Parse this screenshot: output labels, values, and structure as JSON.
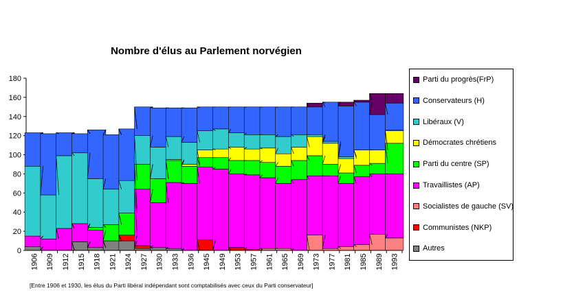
{
  "chart_data": {
    "type": "bar",
    "stacked": true,
    "title": "Nombre d'élus au Parlement norvégien",
    "xlabel": "",
    "ylabel": "",
    "ylim": [
      0,
      180
    ],
    "yticks": [
      0,
      20,
      40,
      60,
      80,
      100,
      120,
      140,
      160,
      180
    ],
    "grid": false,
    "connector_lines": true,
    "legend_position": "right",
    "categories": [
      "1906",
      "1909",
      "1912",
      "1915",
      "1918",
      "1921",
      "1924",
      "1927",
      "1930",
      "1933",
      "1936",
      "1945",
      "1949",
      "1953",
      "1957",
      "1961",
      "1965",
      "1969",
      "1973",
      "1977",
      "1981",
      "1985",
      "1989",
      "1993"
    ],
    "series": [
      {
        "name": "Autres",
        "color": "#808080",
        "values": [
          4,
          0,
          0,
          9,
          3,
          10,
          10,
          2,
          3,
          2,
          0,
          0,
          0,
          0,
          0,
          0,
          0,
          0,
          0,
          0,
          0,
          0,
          0,
          0
        ]
      },
      {
        "name": "Communistes (NKP)",
        "color": "#ff0000",
        "values": [
          0,
          0,
          0,
          0,
          0,
          0,
          6,
          3,
          0,
          0,
          0,
          11,
          0,
          3,
          1,
          0,
          0,
          0,
          0,
          0,
          0,
          0,
          0,
          0
        ]
      },
      {
        "name": "Socialistes de gauche (SV)",
        "color": "#ff8080",
        "values": [
          0,
          0,
          0,
          0,
          0,
          0,
          0,
          0,
          0,
          0,
          0,
          0,
          0,
          0,
          0,
          2,
          2,
          0,
          16,
          2,
          4,
          6,
          17,
          13
        ]
      },
      {
        "name": "Travaillistes (AP)",
        "color": "#ff00ff",
        "values": [
          11,
          12,
          23,
          19,
          18,
          0,
          0,
          59,
          47,
          69,
          70,
          76,
          85,
          77,
          78,
          74,
          68,
          74,
          62,
          76,
          66,
          71,
          63,
          67
        ]
      },
      {
        "name": "Parti du centre (SP)",
        "color": "#00ff00",
        "values": [
          0,
          0,
          0,
          0,
          3,
          17,
          23,
          26,
          25,
          23,
          18,
          10,
          12,
          14,
          15,
          16,
          18,
          20,
          21,
          12,
          11,
          12,
          11,
          32
        ]
      },
      {
        "name": "Démocrates chrétiens",
        "color": "#ffff00",
        "values": [
          0,
          0,
          0,
          0,
          0,
          0,
          0,
          0,
          0,
          1,
          2,
          8,
          9,
          14,
          12,
          15,
          13,
          14,
          20,
          22,
          15,
          16,
          14,
          13
        ]
      },
      {
        "name": "Libéraux (V)",
        "color": "#33cccc",
        "values": [
          73,
          46,
          76,
          74,
          51,
          37,
          34,
          30,
          33,
          24,
          23,
          20,
          21,
          15,
          15,
          14,
          18,
          13,
          2,
          2,
          2,
          0,
          0,
          1
        ]
      },
      {
        "name": "Conservateurs (H)",
        "color": "#3366ff",
        "values": [
          35,
          64,
          24,
          20,
          51,
          57,
          54,
          30,
          41,
          30,
          36,
          25,
          23,
          27,
          29,
          29,
          31,
          29,
          29,
          41,
          53,
          50,
          37,
          28
        ]
      },
      {
        "name": "Parti du progrès(FrP)",
        "color": "#660066",
        "values": [
          0,
          0,
          0,
          0,
          0,
          0,
          0,
          0,
          0,
          0,
          0,
          0,
          0,
          0,
          0,
          0,
          0,
          0,
          4,
          0,
          4,
          2,
          22,
          10
        ]
      }
    ],
    "footnote": "[Entre 1906 et 1930, les élus du Parti libéral indépendant sont comptabilisés avec ceux du Parti conservateur]"
  }
}
